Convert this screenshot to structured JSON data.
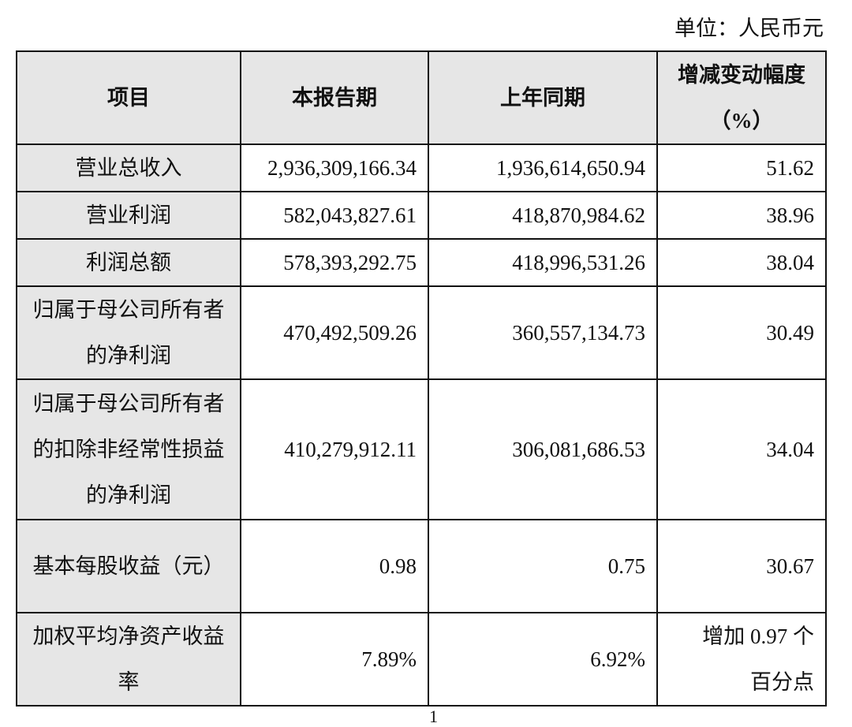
{
  "unit_label": "单位：人民币元",
  "headers": [
    "项目",
    "本报告期",
    "上年同期",
    "增减变动幅度（%）"
  ],
  "rows": [
    {
      "item": "营业总收入",
      "current": "2,936,309,166.34",
      "prior": "1,936,614,650.94",
      "change": "51.62"
    },
    {
      "item": "营业利润",
      "current": "582,043,827.61",
      "prior": "418,870,984.62",
      "change": "38.96"
    },
    {
      "item": "利润总额",
      "current": "578,393,292.75",
      "prior": "418,996,531.26",
      "change": "38.04"
    },
    {
      "item": "归属于母公司所有者的净利润",
      "current": "470,492,509.26",
      "prior": "360,557,134.73",
      "change": "30.49"
    },
    {
      "item": "归属于母公司所有者的扣除非经常性损益的净利润",
      "current": "410,279,912.11",
      "prior": "306,081,686.53",
      "change": "34.04"
    },
    {
      "item": "基本每股收益（元）",
      "current": "0.98",
      "prior": "0.75",
      "change": "30.67"
    },
    {
      "item": "加权平均净资产收益率",
      "current": "7.89%",
      "prior": "6.92%",
      "change": "增加 0.97 个百分点"
    }
  ],
  "page_number": "1"
}
